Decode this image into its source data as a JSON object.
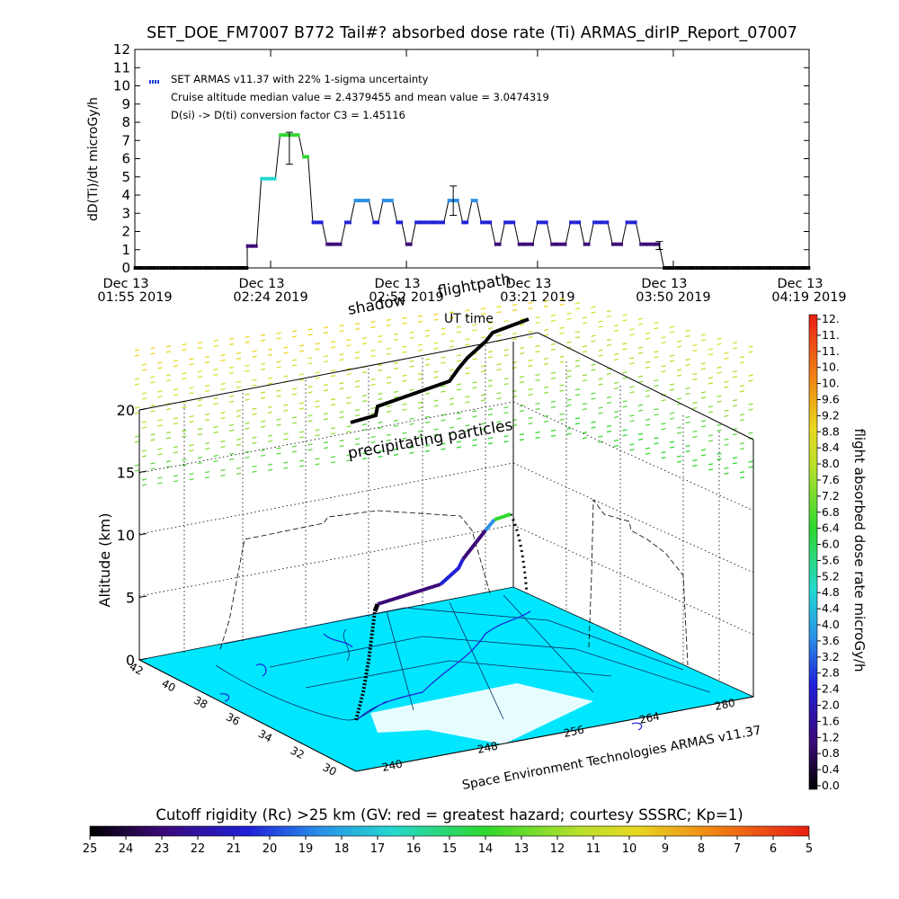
{
  "chart_data": [
    {
      "type": "line",
      "title": "SET_DOE_FM7007  B772 Tail#? absorbed dose rate (Ti) ARMAS_dirIP_Report_07007",
      "ylabel": "dD(Ti)/dt microGy/h",
      "ylim": [
        0,
        12
      ],
      "yticks": [
        "0",
        "1",
        "2",
        "3",
        "4",
        "5",
        "6",
        "7",
        "8",
        "9",
        "10",
        "11",
        "12"
      ],
      "xlim": [
        0,
        144
      ],
      "x_unit": "minutes after Dec 13 01:55 2019 (UT)",
      "xticks": [
        {
          "x": 0,
          "line1": "Dec 13",
          "line2": "01:55 2019"
        },
        {
          "x": 29,
          "line1": "Dec 13",
          "line2": "02:24 2019"
        },
        {
          "x": 58,
          "line1": "Dec 13",
          "line2": "02:52 2019"
        },
        {
          "x": 86,
          "line1": "Dec 13",
          "line2": "03:21 2019"
        },
        {
          "x": 115,
          "line1": "Dec 13",
          "line2": "03:50 2019"
        },
        {
          "x": 144,
          "line1": "Dec 13",
          "line2": "04:19 2019"
        }
      ],
      "legend": {
        "entry": "SET ARMAS v11.37 with 22% 1-sigma uncertainty",
        "line2": "Cruise altitude median value = 2.4379455 and mean value = 3.0474319",
        "line3": "D(si) -> D(ti) conversion factor C3 = 1.45116",
        "marker_color": "#1a3cd8",
        "placement": "top-left"
      },
      "series": [
        {
          "points": [
            [
              0,
              0
            ],
            [
              22,
              0
            ],
            [
              24,
              0
            ],
            [
              24,
              1.2
            ],
            [
              26,
              1.2
            ],
            [
              27,
              4.9
            ],
            [
              30,
              4.9
            ],
            [
              31,
              7.3
            ],
            [
              35,
              7.3
            ],
            [
              36,
              6.1
            ],
            [
              37,
              6.1
            ],
            [
              38,
              2.5
            ],
            [
              40,
              2.5
            ],
            [
              41,
              1.3
            ],
            [
              44,
              1.3
            ],
            [
              45,
              2.5
            ],
            [
              46,
              2.5
            ],
            [
              47,
              3.7
            ],
            [
              50,
              3.7
            ],
            [
              51,
              2.5
            ],
            [
              52,
              2.5
            ],
            [
              53,
              3.7
            ],
            [
              55,
              3.7
            ],
            [
              56,
              2.5
            ],
            [
              57,
              2.5
            ],
            [
              58,
              1.3
            ],
            [
              59,
              1.3
            ],
            [
              60,
              2.5
            ],
            [
              66,
              2.5
            ],
            [
              67,
              3.7
            ],
            [
              69,
              3.7
            ],
            [
              70,
              2.5
            ],
            [
              71,
              2.5
            ],
            [
              72,
              3.7
            ],
            [
              73,
              3.7
            ],
            [
              74,
              2.5
            ],
            [
              76,
              2.5
            ],
            [
              77,
              1.3
            ],
            [
              78,
              1.3
            ],
            [
              79,
              2.5
            ],
            [
              81,
              2.5
            ],
            [
              82,
              1.3
            ],
            [
              85,
              1.3
            ],
            [
              86,
              2.5
            ],
            [
              88,
              2.5
            ],
            [
              89,
              1.3
            ],
            [
              92,
              1.3
            ],
            [
              93,
              2.5
            ],
            [
              95,
              2.5
            ],
            [
              96,
              1.3
            ],
            [
              97,
              1.3
            ],
            [
              98,
              2.5
            ],
            [
              101,
              2.5
            ],
            [
              102,
              1.3
            ],
            [
              104,
              1.3
            ],
            [
              105,
              2.5
            ],
            [
              107,
              2.5
            ],
            [
              108,
              1.3
            ],
            [
              112,
              1.3
            ],
            [
              113,
              0
            ],
            [
              144,
              0
            ]
          ],
          "error_bars": [
            [
              33,
              7.3,
              7.45
            ],
            [
              68,
              3.7,
              4.5
            ],
            [
              112,
              1.3,
              1.45
            ]
          ]
        }
      ],
      "grid": false
    },
    {
      "type": "scatter",
      "subtype": "3D flight track over map",
      "zlabel": "Altitude (km)",
      "zlim": [
        0,
        20
      ],
      "zticks": [
        "0",
        "5",
        "10",
        "15",
        "20"
      ],
      "lat_ticks": [
        "42",
        "40",
        "38",
        "36",
        "34",
        "32",
        "30"
      ],
      "lon_ticks": [
        "240",
        "248",
        "256",
        "264",
        "280"
      ],
      "annotations": [
        "shadow",
        "flightpath",
        "UT time",
        "precipitating particles"
      ],
      "credit": "Space Environment Technologies ARMAS v11.37",
      "colorbar": {
        "label": "flight absorbed dose rate microGy/h",
        "ticks": [
          "12.",
          "11.",
          "11.",
          "10.",
          "10.",
          "9.6",
          "9.2",
          "8.8",
          "8.4",
          "8.0",
          "7.6",
          "7.2",
          "6.8",
          "6.4",
          "6.0",
          "5.6",
          "5.2",
          "4.8",
          "4.4",
          "4.0",
          "3.6",
          "3.2",
          "2.8",
          "2.4",
          "2.0",
          "1.6",
          "1.2",
          "0.8",
          "0.4",
          "0.0"
        ],
        "colors": [
          "#000000",
          "#3c0a78",
          "#1f20d8",
          "#2a90e8",
          "#24d8d0",
          "#2ed82e",
          "#b8e02c",
          "#e8d820",
          "#f08a14",
          "#e81e14"
        ]
      },
      "horizontal_colorbar": {
        "label": "Cutoff rigidity (Rc) >25 km (GV: red = greatest hazard; courtesy SSSRC; Kp=1)",
        "ticks": [
          "25",
          "24",
          "23",
          "22",
          "21",
          "20",
          "19",
          "18",
          "17",
          "16",
          "15",
          "14",
          "13",
          "12",
          "11",
          "10",
          "9",
          "8",
          "7",
          "6",
          "5"
        ],
        "colors": [
          "#000000",
          "#3c0a78",
          "#1f20d8",
          "#2a90e8",
          "#24d8d0",
          "#2ed82e",
          "#b8e02c",
          "#e8d820",
          "#f08a14",
          "#e81e14"
        ]
      }
    }
  ]
}
